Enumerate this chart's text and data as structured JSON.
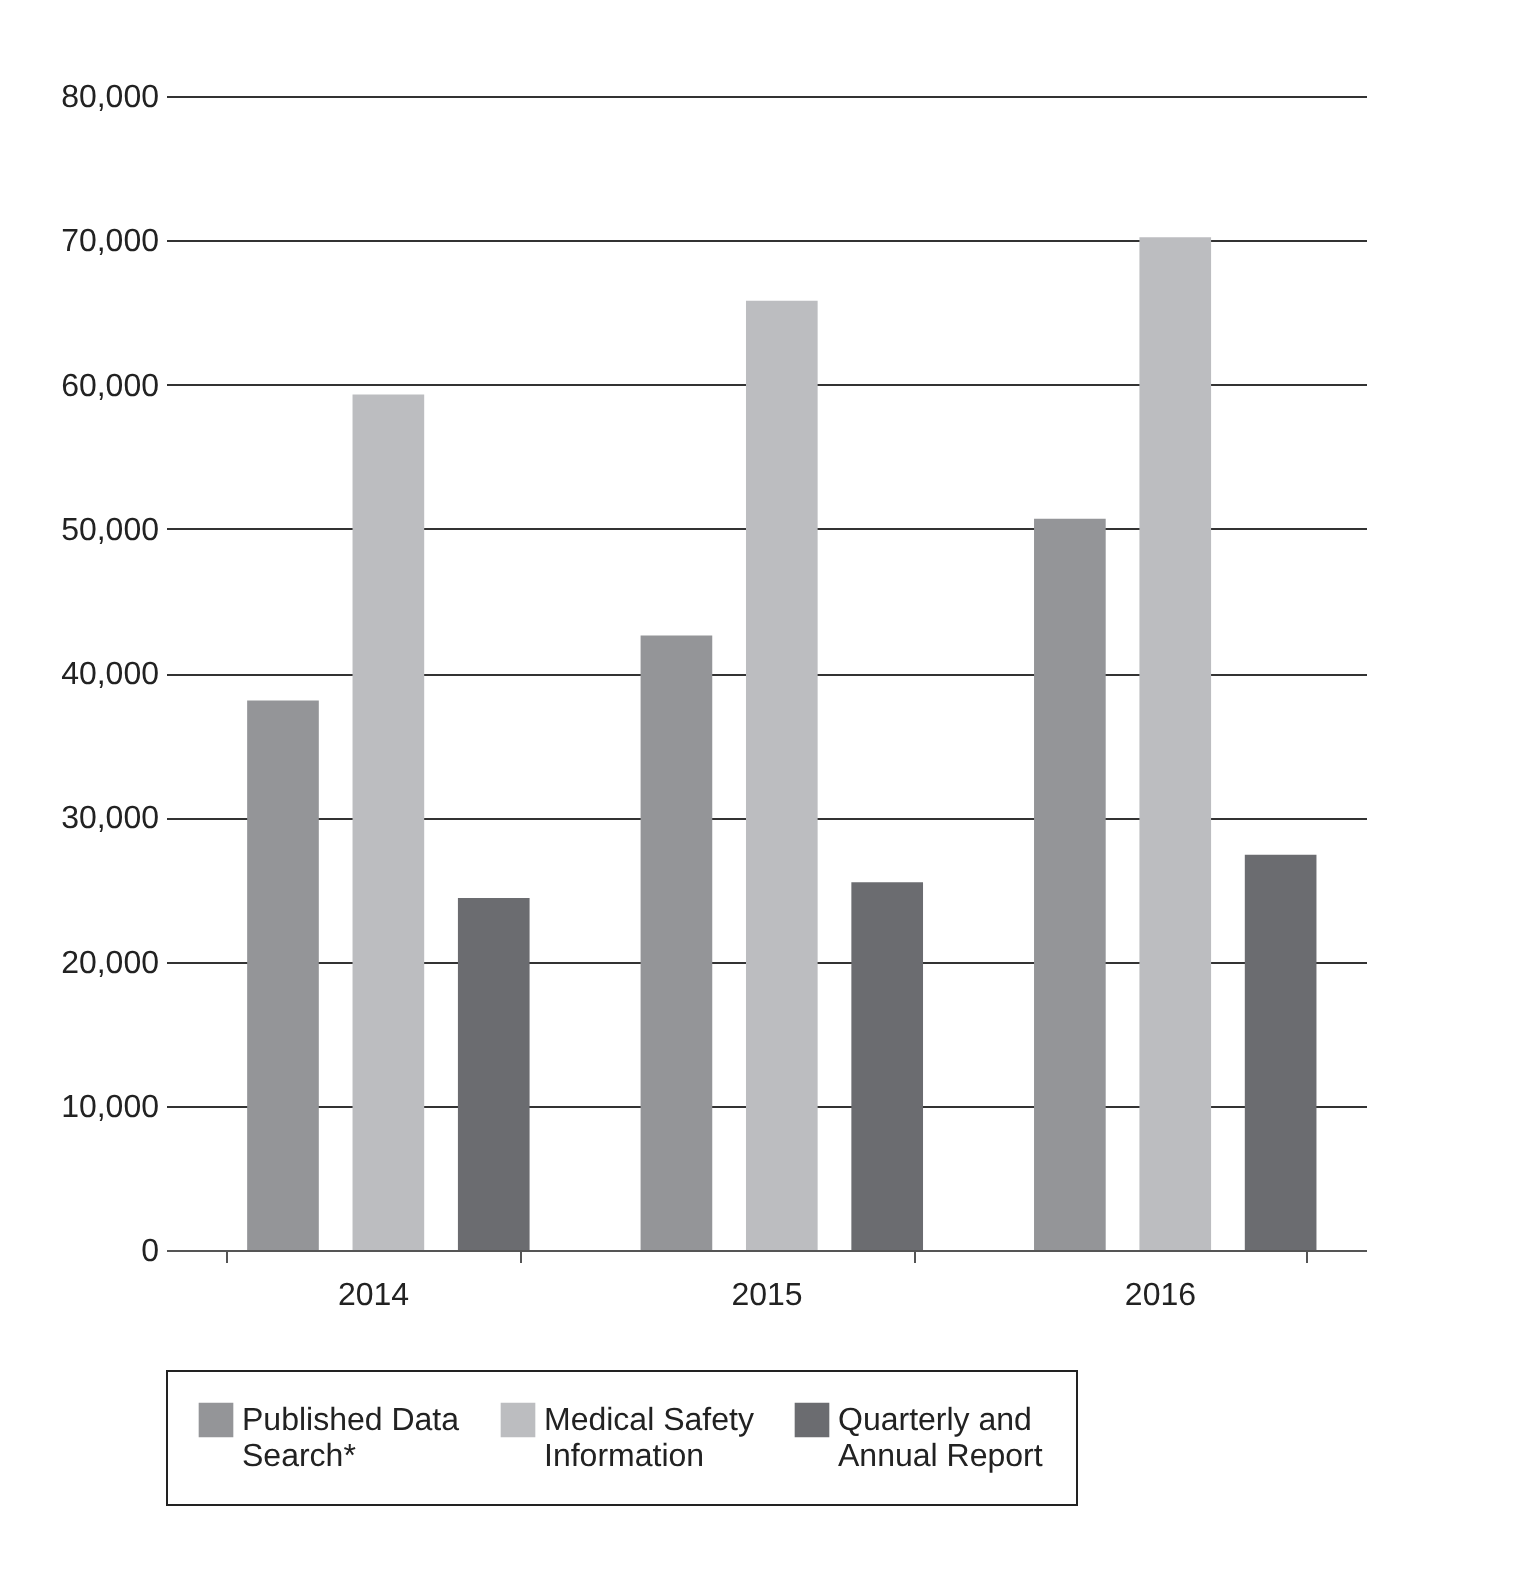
{
  "chart_data": {
    "type": "bar",
    "categories": [
      "2014",
      "2015",
      "2016"
    ],
    "series": [
      {
        "name": "Published Data Search*",
        "color": "#949598",
        "values": [
          38100,
          42600,
          50700
        ]
      },
      {
        "name": "Medical Safety Information",
        "color": "#bcbdc0",
        "values": [
          59300,
          65800,
          70200
        ]
      },
      {
        "name": "Quarterly and Annual Report",
        "color": "#6b6c70",
        "values": [
          24400,
          25500,
          27400
        ]
      }
    ],
    "ylim": [
      0,
      80000
    ],
    "yticks": [
      0,
      {
        "value": 10000,
        "label": "10,000"
      },
      {
        "value": 20000,
        "label": "20,000"
      },
      {
        "value": 30000,
        "label": "30,000"
      },
      {
        "value": 40000,
        "label": "40,000"
      },
      {
        "value": 50000,
        "label": "50,000"
      },
      {
        "value": 60000,
        "label": "60,000"
      },
      {
        "value": 70000,
        "label": "70,000"
      },
      {
        "value": 80000,
        "label": "80,000"
      }
    ],
    "grid": "y",
    "legend": "bottom"
  }
}
